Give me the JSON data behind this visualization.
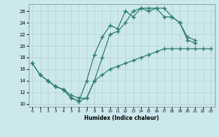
{
  "bg_color": "#cce8ec",
  "grid_color": "#b8d4d8",
  "line_color": "#2d7a70",
  "line1": {
    "x": [
      0,
      1,
      2,
      3,
      4,
      5,
      6,
      7,
      8,
      9,
      10,
      11,
      12,
      13,
      14,
      15,
      16,
      17,
      18,
      19,
      20,
      21
    ],
    "y": [
      17,
      15,
      14,
      13,
      12.5,
      11,
      10.5,
      14,
      18.5,
      21.5,
      23.5,
      23,
      26,
      25,
      26.5,
      26.5,
      26.5,
      25,
      25,
      24,
      21,
      20.5
    ]
  },
  "line2": {
    "x": [
      0,
      1,
      2,
      3,
      4,
      5,
      6,
      7,
      8,
      9,
      10,
      11,
      12,
      13,
      14,
      15,
      16,
      17,
      18,
      19,
      20,
      21,
      22,
      23
    ],
    "y": [
      17,
      15,
      14,
      13,
      12.5,
      11,
      10.5,
      11,
      14,
      18,
      22,
      22.5,
      24,
      26,
      26.5,
      26,
      26.5,
      26.5,
      25,
      24,
      21.5,
      21,
      null,
      null
    ]
  },
  "line3": {
    "x": [
      2,
      3,
      4,
      5,
      6,
      7,
      8,
      9,
      10,
      11,
      12,
      13,
      14,
      15,
      16,
      17,
      18,
      19,
      20,
      21,
      22,
      23
    ],
    "y": [
      14,
      13,
      12.5,
      11.5,
      11,
      11,
      14,
      15,
      16,
      16.5,
      17,
      17.5,
      18,
      18.5,
      19,
      19.5,
      19.5,
      19.5,
      19.5,
      19.5,
      19.5,
      19.5
    ]
  },
  "xlabel": "Humidex (Indice chaleur)",
  "xlim": [
    -0.5,
    23.5
  ],
  "ylim": [
    9.5,
    27.2
  ],
  "yticks": [
    10,
    12,
    14,
    16,
    18,
    20,
    22,
    24,
    26
  ],
  "xticks": [
    0,
    1,
    2,
    3,
    4,
    5,
    6,
    7,
    8,
    9,
    10,
    11,
    12,
    13,
    14,
    15,
    16,
    17,
    18,
    19,
    20,
    21,
    22,
    23
  ]
}
